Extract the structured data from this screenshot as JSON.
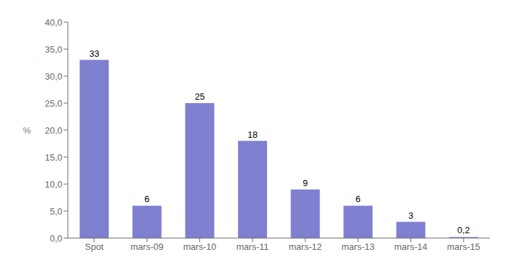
{
  "chart_data": {
    "type": "bar",
    "categories": [
      "Spot",
      "mars-09",
      "mars-10",
      "mars-11",
      "mars-12",
      "mars-13",
      "mars-14",
      "mars-15"
    ],
    "values": [
      33,
      6,
      25,
      18,
      9,
      6,
      3,
      0.2
    ],
    "value_labels": [
      "33",
      "6",
      "25",
      "18",
      "9",
      "6",
      "3",
      "0,2"
    ],
    "data_labels": true,
    "color": "#8080d0",
    "ylabel": "%",
    "ylim": [
      0,
      40
    ],
    "yticks": [
      {
        "value": 0.0,
        "label": "0,0"
      },
      {
        "value": 5.0,
        "label": "5,0"
      },
      {
        "value": 10.0,
        "label": "10,0"
      },
      {
        "value": 15.0,
        "label": "15,0"
      },
      {
        "value": 20.0,
        "label": "20,0"
      },
      {
        "value": 25.0,
        "label": "25,0"
      },
      {
        "value": 30.0,
        "label": "30,0"
      },
      {
        "value": 35.0,
        "label": "35,0"
      },
      {
        "value": 40.0,
        "label": "40,0"
      }
    ],
    "grid": false
  }
}
